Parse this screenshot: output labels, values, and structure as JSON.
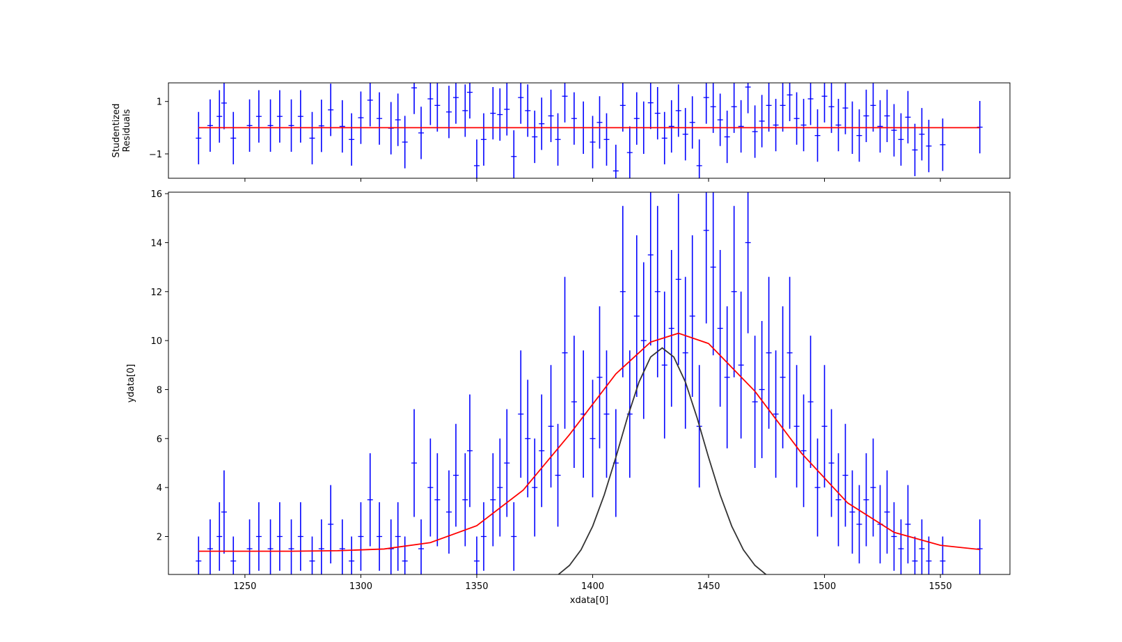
{
  "chart_data": [
    {
      "type": "errorbar",
      "ylabel": [
        "Studentized",
        "Residuals"
      ],
      "xlim": [
        1217,
        1580
      ],
      "ylim": [
        -1.93,
        1.71
      ],
      "xticks": [
        1250,
        1300,
        1350,
        1400,
        1450,
        1500,
        1550
      ],
      "yticks": [
        {
          "value": -1,
          "label": "−1"
        },
        1
      ],
      "color": "#0000ff",
      "x": [
        1230,
        1235,
        1239,
        1241,
        1245,
        1252,
        1256,
        1261,
        1265,
        1270,
        1274,
        1279,
        1283,
        1287,
        1292,
        1296,
        1300,
        1304,
        1308,
        1313,
        1316,
        1319,
        1323,
        1326,
        1330,
        1333,
        1338,
        1341,
        1345,
        1347,
        1350,
        1353,
        1357,
        1360,
        1363,
        1366,
        1369,
        1372,
        1375,
        1378,
        1382,
        1385,
        1388,
        1392,
        1396,
        1400,
        1403,
        1406,
        1410,
        1413,
        1416,
        1419,
        1422,
        1425,
        1428,
        1431,
        1434,
        1437,
        1440,
        1443,
        1446,
        1449,
        1452,
        1455,
        1458,
        1461,
        1464,
        1467,
        1470,
        1473,
        1476,
        1479,
        1482,
        1485,
        1488,
        1491,
        1494,
        1497,
        1500,
        1503,
        1506,
        1509,
        1512,
        1515,
        1518,
        1521,
        1524,
        1527,
        1530,
        1533,
        1536,
        1539,
        1542,
        1545,
        1551,
        1567
      ],
      "values": [
        -0.4,
        0.08,
        0.43,
        0.94,
        -0.4,
        0.08,
        0.43,
        0.08,
        0.43,
        0.08,
        0.43,
        -0.4,
        0.07,
        0.68,
        0.05,
        -0.45,
        0.38,
        1.05,
        0.35,
        -0.02,
        0.3,
        -0.55,
        1.52,
        -0.2,
        1.1,
        0.85,
        0.6,
        1.15,
        0.65,
        1.35,
        -1.45,
        -0.45,
        0.55,
        0.5,
        0.7,
        -1.1,
        1.15,
        0.65,
        -0.35,
        0.15,
        0.45,
        -0.45,
        1.2,
        0.35,
        0.0,
        -0.55,
        0.2,
        -0.45,
        -1.65,
        0.85,
        -0.95,
        0.35,
        0.0,
        0.95,
        0.55,
        -0.4,
        0.05,
        0.65,
        -0.25,
        0.2,
        -1.45,
        1.15,
        0.8,
        0.3,
        -0.35,
        0.8,
        0.05,
        1.55,
        -0.15,
        0.25,
        0.85,
        0.1,
        0.85,
        1.25,
        0.35,
        0.1,
        1.1,
        -0.3,
        1.2,
        0.8,
        0.1,
        0.75,
        0.0,
        -0.3,
        0.45,
        0.85,
        0.05,
        0.45,
        -0.1,
        -0.45,
        0.4,
        -0.85,
        -0.25,
        -0.7,
        -0.65,
        0.02
      ],
      "errors": [
        1,
        1,
        1,
        1,
        1,
        1,
        1,
        1,
        1,
        1,
        1,
        1,
        1,
        1,
        1,
        1,
        1,
        1,
        1,
        1,
        1,
        1,
        1,
        1,
        1,
        1,
        1,
        1,
        1,
        1,
        1,
        1,
        1,
        1,
        1,
        1,
        1,
        1,
        1,
        1,
        1,
        1,
        1,
        1,
        1,
        1,
        1,
        1,
        1,
        1,
        1,
        1,
        1,
        1,
        1,
        1,
        1,
        1,
        1,
        1,
        1,
        1,
        1,
        1,
        1,
        1,
        1,
        1,
        1,
        1,
        1,
        1,
        1,
        1,
        1,
        1,
        1,
        1,
        1,
        1,
        1,
        1,
        1,
        1,
        1,
        1,
        1,
        1,
        1,
        1,
        1,
        1,
        1,
        1,
        1,
        1
      ],
      "series": [
        {
          "x": [
            1230,
            1567
          ],
          "values": [
            0,
            0
          ],
          "color": "#ff0000"
        }
      ]
    },
    {
      "type": "errorbar",
      "xlabel": "xdata[0]",
      "ylabel": [
        "ydata[0]"
      ],
      "xlim": [
        1217,
        1580
      ],
      "ylim": [
        0.45,
        16.06
      ],
      "xticks": [
        1250,
        1300,
        1350,
        1400,
        1450,
        1500,
        1550
      ],
      "yticks": [
        2,
        4,
        6,
        8,
        10,
        12,
        14,
        16
      ],
      "color": "#0000ff",
      "x": [
        1230,
        1235,
        1239,
        1241,
        1245,
        1252,
        1256,
        1261,
        1265,
        1270,
        1274,
        1279,
        1283,
        1287,
        1292,
        1296,
        1300,
        1304,
        1308,
        1313,
        1316,
        1319,
        1323,
        1326,
        1330,
        1333,
        1338,
        1341,
        1345,
        1347,
        1350,
        1353,
        1357,
        1360,
        1363,
        1366,
        1369,
        1372,
        1375,
        1378,
        1382,
        1385,
        1388,
        1392,
        1396,
        1400,
        1403,
        1406,
        1410,
        1413,
        1416,
        1419,
        1422,
        1425,
        1428,
        1431,
        1434,
        1437,
        1440,
        1443,
        1446,
        1449,
        1452,
        1455,
        1458,
        1461,
        1464,
        1467,
        1470,
        1473,
        1476,
        1479,
        1482,
        1485,
        1488,
        1491,
        1494,
        1497,
        1500,
        1503,
        1506,
        1509,
        1512,
        1515,
        1518,
        1521,
        1524,
        1527,
        1530,
        1533,
        1536,
        1539,
        1542,
        1545,
        1551,
        1567
      ],
      "values": [
        1.0,
        1.5,
        2.0,
        3.0,
        1.0,
        1.5,
        2.0,
        1.5,
        2.0,
        1.5,
        2.0,
        1.0,
        1.5,
        2.5,
        1.5,
        1.0,
        2.0,
        3.5,
        2.0,
        1.5,
        2.0,
        1.0,
        5.0,
        1.5,
        4.0,
        3.5,
        3.0,
        4.5,
        3.5,
        5.5,
        1.0,
        2.0,
        3.5,
        4.0,
        5.0,
        2.0,
        7.0,
        6.0,
        4.0,
        5.5,
        6.5,
        4.5,
        9.5,
        7.5,
        7.0,
        6.0,
        8.5,
        7.0,
        5.0,
        12.0,
        7.0,
        11.0,
        10.0,
        13.5,
        12.0,
        9.0,
        10.5,
        12.5,
        9.5,
        11.0,
        6.5,
        14.5,
        13.0,
        10.5,
        8.5,
        12.0,
        9.0,
        14.0,
        7.5,
        8.0,
        9.5,
        7.0,
        8.5,
        9.5,
        6.5,
        5.5,
        7.5,
        4.0,
        6.5,
        5.0,
        3.5,
        4.5,
        3.0,
        2.5,
        3.5,
        4.0,
        2.5,
        3.0,
        2.0,
        1.5,
        2.5,
        1.0,
        1.5,
        1.0,
        1.0,
        1.5
      ],
      "errors": [
        1.0,
        1.2,
        1.4,
        1.7,
        1.0,
        1.2,
        1.4,
        1.2,
        1.4,
        1.2,
        1.4,
        1.0,
        1.2,
        1.6,
        1.2,
        1.0,
        1.4,
        1.9,
        1.4,
        1.2,
        1.4,
        1.0,
        2.2,
        1.2,
        2.0,
        1.9,
        1.7,
        2.1,
        1.9,
        2.3,
        1.0,
        1.4,
        1.9,
        2.0,
        2.2,
        1.4,
        2.6,
        2.4,
        2.0,
        2.3,
        2.5,
        2.1,
        3.1,
        2.7,
        2.6,
        2.4,
        2.9,
        2.6,
        2.2,
        3.5,
        2.6,
        3.3,
        3.2,
        3.7,
        3.5,
        3.0,
        3.2,
        3.5,
        3.1,
        3.3,
        2.5,
        3.8,
        3.6,
        3.2,
        2.9,
        3.5,
        3.0,
        3.7,
        2.7,
        2.8,
        3.1,
        2.6,
        2.9,
        3.1,
        2.5,
        2.3,
        2.7,
        2.0,
        2.5,
        2.2,
        1.9,
        2.1,
        1.7,
        1.6,
        1.9,
        2.0,
        1.6,
        1.7,
        1.4,
        1.2,
        1.6,
        1.0,
        1.2,
        1.0,
        1.0,
        1.2
      ],
      "series": [
        {
          "x": [
            1230,
            1250,
            1270,
            1290,
            1310,
            1330,
            1350,
            1370,
            1390,
            1410,
            1425,
            1437,
            1450,
            1470,
            1490,
            1510,
            1530,
            1550,
            1567
          ],
          "values": [
            1.4,
            1.4,
            1.4,
            1.42,
            1.49,
            1.75,
            2.44,
            3.89,
            6.16,
            8.64,
            9.94,
            10.3,
            9.88,
            7.93,
            5.41,
            3.37,
            2.17,
            1.64,
            1.47
          ],
          "color": "#ff0000"
        },
        {
          "x": [
            1385,
            1390,
            1395,
            1400,
            1405,
            1410,
            1415,
            1420,
            1425,
            1430,
            1435,
            1440,
            1445,
            1450,
            1455,
            1460,
            1465,
            1470,
            1475
          ],
          "values": [
            0.43,
            0.82,
            1.46,
            2.42,
            3.7,
            5.23,
            6.86,
            8.31,
            9.33,
            9.7,
            9.33,
            8.31,
            6.86,
            5.23,
            3.7,
            2.42,
            1.46,
            0.82,
            0.43
          ],
          "color": "#333333"
        }
      ]
    }
  ]
}
